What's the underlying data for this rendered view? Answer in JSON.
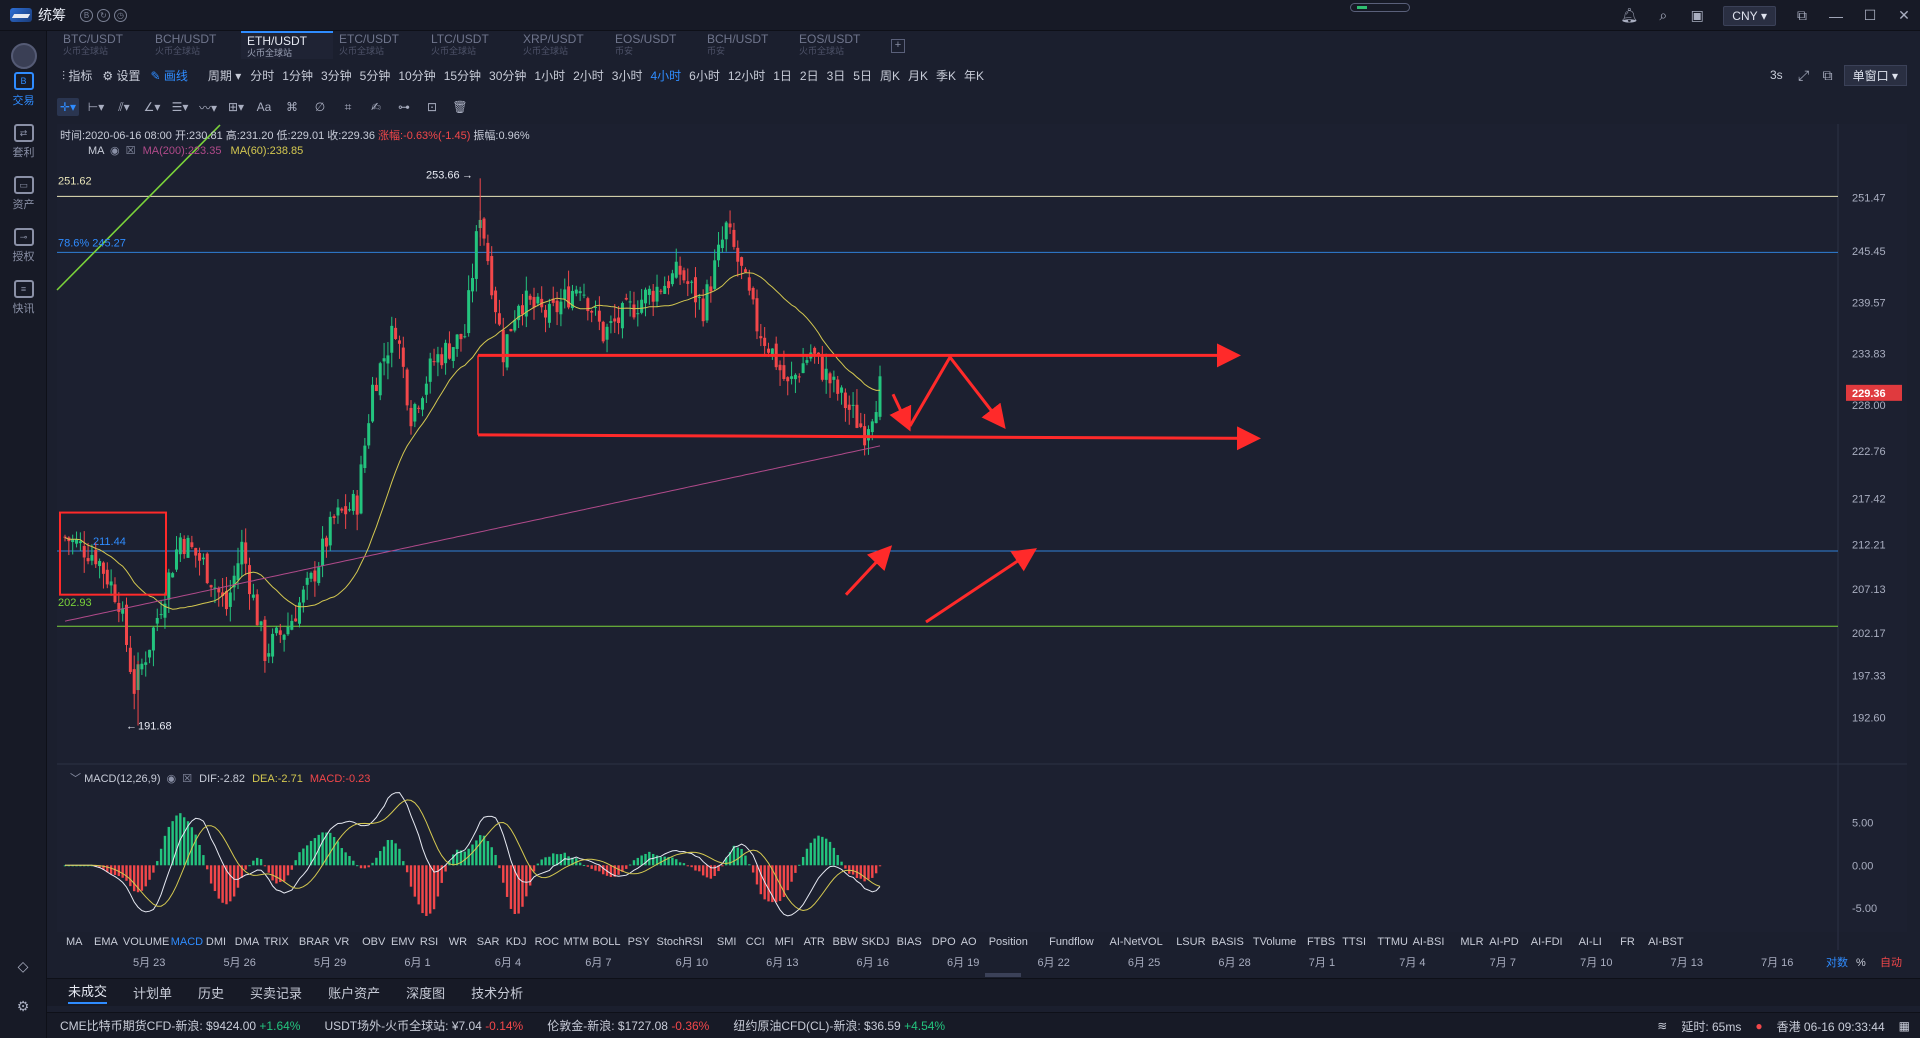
{
  "app": {
    "name": "统筹",
    "currency": "CNY"
  },
  "rail": {
    "items": [
      {
        "label": "交易",
        "icon": "exchange-icon",
        "active": true
      },
      {
        "label": "套利",
        "icon": "arbitrage-icon"
      },
      {
        "label": "资产",
        "icon": "wallet-icon"
      },
      {
        "label": "授权",
        "icon": "key-icon"
      },
      {
        "label": "快讯",
        "icon": "news-icon"
      }
    ]
  },
  "pair_tabs": [
    {
      "pair": "BTC/USDT",
      "exchange": "火币全球站"
    },
    {
      "pair": "BCH/USDT",
      "exchange": "火币全球站"
    },
    {
      "pair": "ETH/USDT",
      "exchange": "火币全球站",
      "active": true
    },
    {
      "pair": "ETC/USDT",
      "exchange": "火币全球站"
    },
    {
      "pair": "LTC/USDT",
      "exchange": "火币全球站"
    },
    {
      "pair": "XRP/USDT",
      "exchange": "火币全球站"
    },
    {
      "pair": "EOS/USDT",
      "exchange": "币安"
    },
    {
      "pair": "BCH/USDT",
      "exchange": "币安"
    },
    {
      "pair": "EOS/USDT",
      "exchange": "火币全球站"
    }
  ],
  "toolbar": {
    "indicator": "指标",
    "settings": "设置",
    "draw": "画线",
    "period": "周期",
    "intervals": [
      "分时",
      "1分钟",
      "3分钟",
      "5分钟",
      "10分钟",
      "15分钟",
      "30分钟",
      "1小时",
      "2小时",
      "3小时",
      "4小时",
      "6小时",
      "12小时",
      "1日",
      "2日",
      "3日",
      "5日",
      "周K",
      "月K",
      "季K",
      "年K"
    ],
    "active_interval": "4小时",
    "refresh": "3s",
    "window_mode": "单窗口"
  },
  "ohlc": {
    "time": "时间:2020-06-16 08:00",
    "open": "开:230.81",
    "high": "高:231.20",
    "low": "低:229.01",
    "close": "收:229.36",
    "change": "涨幅:-0.63%(-1.45)",
    "amplitude": "振幅:0.96%"
  },
  "ma_legend": {
    "name": "MA",
    "ma200": "MA(200):223.35",
    "ma60": "MA(60):238.85"
  },
  "macd_legend": {
    "name": "MACD(12,26,9)",
    "dif": "DIF:-2.82",
    "dea": "DEA:-2.71",
    "macd": "MACD:-0.23"
  },
  "chart_data": {
    "type": "candlestick",
    "symbol": "ETH/USDT",
    "interval": "4小时",
    "price_axis": [
      "251.47",
      "245.45",
      "239.57",
      "233.83",
      "228.00",
      "222.76",
      "217.42",
      "212.21",
      "207.13",
      "202.17",
      "197.33",
      "192.60"
    ],
    "ylim": [
      188,
      258
    ],
    "last_price": "229.36",
    "x_labels": [
      "5月 23",
      "5月 26",
      "5月 29",
      "6月 1",
      "6月 4",
      "6月 7",
      "6月 10",
      "6月 13",
      "6月 16",
      "6月 19",
      "6月 22",
      "6月 25",
      "6月 28",
      "7月 1",
      "7月 4",
      "7月 7",
      "7月 10",
      "7月 13",
      "7月 16"
    ],
    "annotations": {
      "high": "253.66",
      "low": "191.68",
      "left_top": "251.62",
      "left_bottom": "202.93",
      "fib": "78.6% 245.27",
      "box_level": "211.44"
    },
    "horizontal_lines": [
      {
        "price": 251.62,
        "color": "#e8e4b8"
      },
      {
        "price": 245.27,
        "color": "#2f7fd6"
      },
      {
        "price": 211.44,
        "color": "#2f7fd6"
      },
      {
        "price": 202.93,
        "color": "#7bd33a"
      }
    ],
    "macd_axis": [
      "5.00",
      "0.00",
      "-5.00"
    ],
    "macd_ylim": [
      -7,
      10
    ],
    "colors": {
      "up": "#23c47e",
      "down": "#f2474a",
      "ma60": "#d4c850",
      "ma200": "#b04a8a",
      "arrow": "#ff2a2a"
    }
  },
  "indicator_bar": [
    "MA",
    "EMA",
    "VOLUME",
    "MACD",
    "DMI",
    "DMA",
    "TRIX",
    "BRAR",
    "VR",
    "OBV",
    "EMV",
    "RSI",
    "WR",
    "SAR",
    "KDJ",
    "ROC",
    "MTM",
    "BOLL",
    "PSY",
    "StochRSI",
    "SMI",
    "CCI",
    "MFI",
    "ATR",
    "BBW",
    "SKDJ",
    "BIAS",
    "DPO",
    "AO",
    "Position",
    "Fundflow",
    "AI-NetVOL",
    "LSUR",
    "BASIS",
    "TVolume",
    "FTBS",
    "TTSI",
    "TTMU",
    "AI-BSI",
    "MLR",
    "AI-PD",
    "AI-FDI",
    "AI-LI",
    "FR",
    "AI-BST"
  ],
  "indicator_active": "MACD",
  "axis_options": {
    "log": "对数",
    "percent": "%",
    "auto": "自动"
  },
  "bottom_tabs": [
    "未成交",
    "计划单",
    "历史",
    "买卖记录",
    "账户资产",
    "深度图",
    "技术分析"
  ],
  "status": {
    "tickers": [
      {
        "name": "CME比特币期货CFD-新浪:",
        "price": "$9424.00",
        "change": "+1.64%",
        "dir": "pos"
      },
      {
        "name": "USDT场外-火币全球站:",
        "price": "¥7.04",
        "change": "-0.14%",
        "dir": "neg"
      },
      {
        "name": "伦敦金-新浪:",
        "price": "$1727.08",
        "change": "-0.36%",
        "dir": "neg"
      },
      {
        "name": "纽约原油CFD(CL)-新浪:",
        "price": "$36.59",
        "change": "+4.54%",
        "dir": "pos"
      }
    ],
    "latency": "延时: 65ms",
    "clock": "香港 06-16 09:33:44"
  }
}
